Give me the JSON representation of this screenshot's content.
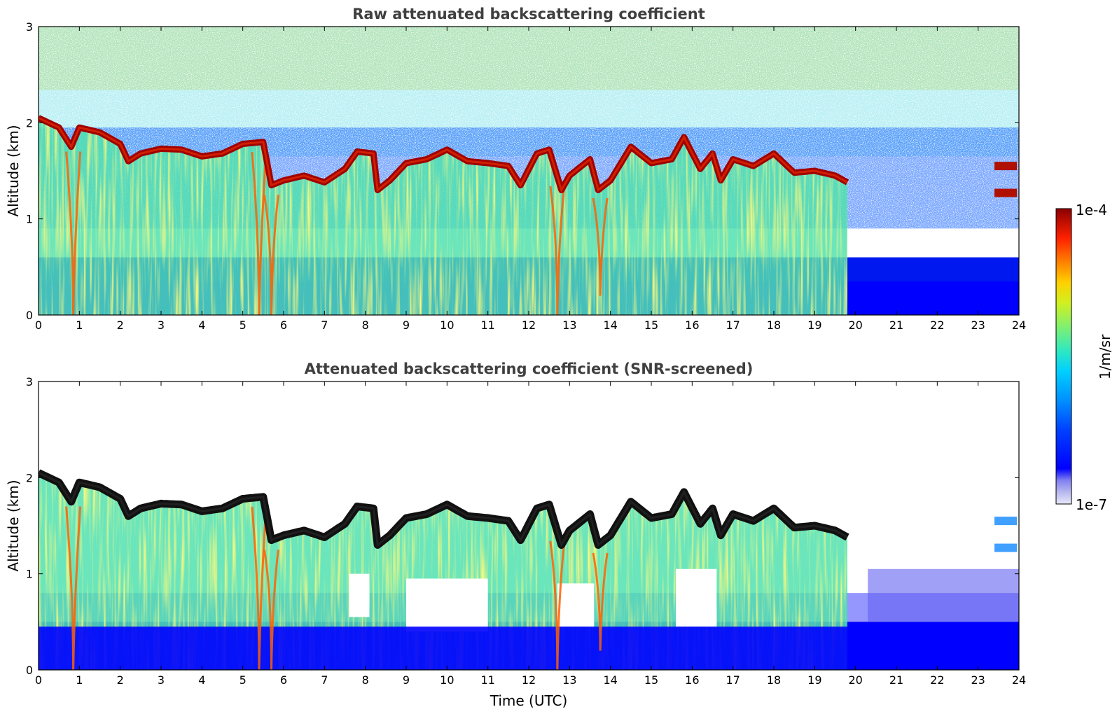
{
  "chart_data": [
    {
      "type": "heatmap",
      "title": "Raw attenuated backscattering coefficient",
      "xlabel": "",
      "ylabel": "Altitude (km)",
      "xlim": [
        0,
        24
      ],
      "ylim": [
        0,
        3
      ],
      "xticks": [
        "0",
        "1",
        "2",
        "3",
        "4",
        "5",
        "6",
        "7",
        "8",
        "9",
        "10",
        "11",
        "12",
        "13",
        "14",
        "15",
        "16",
        "17",
        "18",
        "19",
        "20",
        "21",
        "22",
        "23",
        "24"
      ],
      "yticks": [
        "0",
        "1",
        "2",
        "3"
      ],
      "screened": false,
      "layer_top_km": [
        [
          0,
          2.05
        ],
        [
          0.5,
          1.95
        ],
        [
          0.8,
          1.75
        ],
        [
          1.0,
          1.95
        ],
        [
          1.5,
          1.9
        ],
        [
          2.0,
          1.78
        ],
        [
          2.2,
          1.6
        ],
        [
          2.5,
          1.68
        ],
        [
          3.0,
          1.73
        ],
        [
          3.5,
          1.72
        ],
        [
          4.0,
          1.65
        ],
        [
          4.5,
          1.68
        ],
        [
          5.0,
          1.78
        ],
        [
          5.5,
          1.8
        ],
        [
          5.7,
          1.35
        ],
        [
          6.0,
          1.4
        ],
        [
          6.5,
          1.45
        ],
        [
          7.0,
          1.38
        ],
        [
          7.5,
          1.52
        ],
        [
          7.8,
          1.7
        ],
        [
          8.2,
          1.68
        ],
        [
          8.3,
          1.3
        ],
        [
          8.6,
          1.4
        ],
        [
          9.0,
          1.58
        ],
        [
          9.5,
          1.62
        ],
        [
          10.0,
          1.72
        ],
        [
          10.5,
          1.6
        ],
        [
          11.0,
          1.58
        ],
        [
          11.5,
          1.55
        ],
        [
          11.8,
          1.35
        ],
        [
          12.2,
          1.68
        ],
        [
          12.5,
          1.72
        ],
        [
          12.8,
          1.3
        ],
        [
          13.0,
          1.45
        ],
        [
          13.5,
          1.62
        ],
        [
          13.7,
          1.3
        ],
        [
          14.0,
          1.4
        ],
        [
          14.5,
          1.75
        ],
        [
          15.0,
          1.58
        ],
        [
          15.5,
          1.62
        ],
        [
          15.8,
          1.85
        ],
        [
          16.2,
          1.52
        ],
        [
          16.5,
          1.68
        ],
        [
          16.7,
          1.4
        ],
        [
          17.0,
          1.62
        ],
        [
          17.5,
          1.55
        ],
        [
          18.0,
          1.68
        ],
        [
          18.5,
          1.48
        ],
        [
          19.0,
          1.5
        ],
        [
          19.5,
          1.45
        ],
        [
          19.8,
          1.38
        ]
      ],
      "extra_layers": [
        {
          "t_start": 23.4,
          "t_end": 23.95,
          "alt_km": 1.55
        },
        {
          "t_start": 23.4,
          "t_end": 23.95,
          "alt_km": 1.27
        }
      ],
      "dips": [
        {
          "t": 0.85,
          "depth_km": 0.0
        },
        {
          "t": 5.4,
          "depth_km": 0.0
        },
        {
          "t": 5.7,
          "depth_km": 0.0
        },
        {
          "t": 12.7,
          "depth_km": 0.0
        },
        {
          "t": 13.75,
          "depth_km": 0.2
        }
      ]
    },
    {
      "type": "heatmap",
      "title": "Attenuated backscattering coefficient (SNR-screened)",
      "xlabel": "Time (UTC)",
      "ylabel": "Altitude (km)",
      "xlim": [
        0,
        24
      ],
      "ylim": [
        0,
        3
      ],
      "xticks": [
        "0",
        "1",
        "2",
        "3",
        "4",
        "5",
        "6",
        "7",
        "8",
        "9",
        "10",
        "11",
        "12",
        "13",
        "14",
        "15",
        "16",
        "17",
        "18",
        "19",
        "20",
        "21",
        "22",
        "23",
        "24"
      ],
      "yticks": [
        "0",
        "1",
        "2",
        "3"
      ],
      "screened": true,
      "layer_top_km": [
        [
          0,
          2.05
        ],
        [
          0.5,
          1.95
        ],
        [
          0.8,
          1.75
        ],
        [
          1.0,
          1.95
        ],
        [
          1.5,
          1.9
        ],
        [
          2.0,
          1.78
        ],
        [
          2.2,
          1.6
        ],
        [
          2.5,
          1.68
        ],
        [
          3.0,
          1.73
        ],
        [
          3.5,
          1.72
        ],
        [
          4.0,
          1.65
        ],
        [
          4.5,
          1.68
        ],
        [
          5.0,
          1.78
        ],
        [
          5.5,
          1.8
        ],
        [
          5.7,
          1.35
        ],
        [
          6.0,
          1.4
        ],
        [
          6.5,
          1.45
        ],
        [
          7.0,
          1.38
        ],
        [
          7.5,
          1.52
        ],
        [
          7.8,
          1.7
        ],
        [
          8.2,
          1.68
        ],
        [
          8.3,
          1.3
        ],
        [
          8.6,
          1.4
        ],
        [
          9.0,
          1.58
        ],
        [
          9.5,
          1.62
        ],
        [
          10.0,
          1.72
        ],
        [
          10.5,
          1.6
        ],
        [
          11.0,
          1.58
        ],
        [
          11.5,
          1.55
        ],
        [
          11.8,
          1.35
        ],
        [
          12.2,
          1.68
        ],
        [
          12.5,
          1.72
        ],
        [
          12.8,
          1.3
        ],
        [
          13.0,
          1.45
        ],
        [
          13.5,
          1.62
        ],
        [
          13.7,
          1.3
        ],
        [
          14.0,
          1.4
        ],
        [
          14.5,
          1.75
        ],
        [
          15.0,
          1.58
        ],
        [
          15.5,
          1.62
        ],
        [
          15.8,
          1.85
        ],
        [
          16.2,
          1.52
        ],
        [
          16.5,
          1.68
        ],
        [
          16.7,
          1.4
        ],
        [
          17.0,
          1.62
        ],
        [
          17.5,
          1.55
        ],
        [
          18.0,
          1.68
        ],
        [
          18.5,
          1.48
        ],
        [
          19.0,
          1.5
        ],
        [
          19.5,
          1.45
        ],
        [
          19.8,
          1.38
        ]
      ],
      "extra_layers": [
        {
          "t_start": 23.4,
          "t_end": 23.95,
          "alt_km": 1.55
        },
        {
          "t_start": 23.4,
          "t_end": 23.95,
          "alt_km": 1.27
        }
      ],
      "dips": [
        {
          "t": 0.85,
          "depth_km": 0.0
        },
        {
          "t": 5.4,
          "depth_km": 0.0
        },
        {
          "t": 5.7,
          "depth_km": 0.0
        },
        {
          "t": 12.7,
          "depth_km": 0.0
        },
        {
          "t": 13.75,
          "depth_km": 0.2
        }
      ]
    }
  ],
  "colorbar": {
    "label": "1/m/sr",
    "max_label": "1e-4",
    "min_label": "1e-7",
    "colormap": [
      "#e8e8f8",
      "#b8b8f0",
      "#8080f0",
      "#0000ff",
      "#0040ff",
      "#0080ff",
      "#00c0ff",
      "#20e0e0",
      "#60f0a0",
      "#a0f060",
      "#e0f020",
      "#ffd000",
      "#ff9000",
      "#ff4000",
      "#e00000",
      "#8b0000"
    ]
  }
}
